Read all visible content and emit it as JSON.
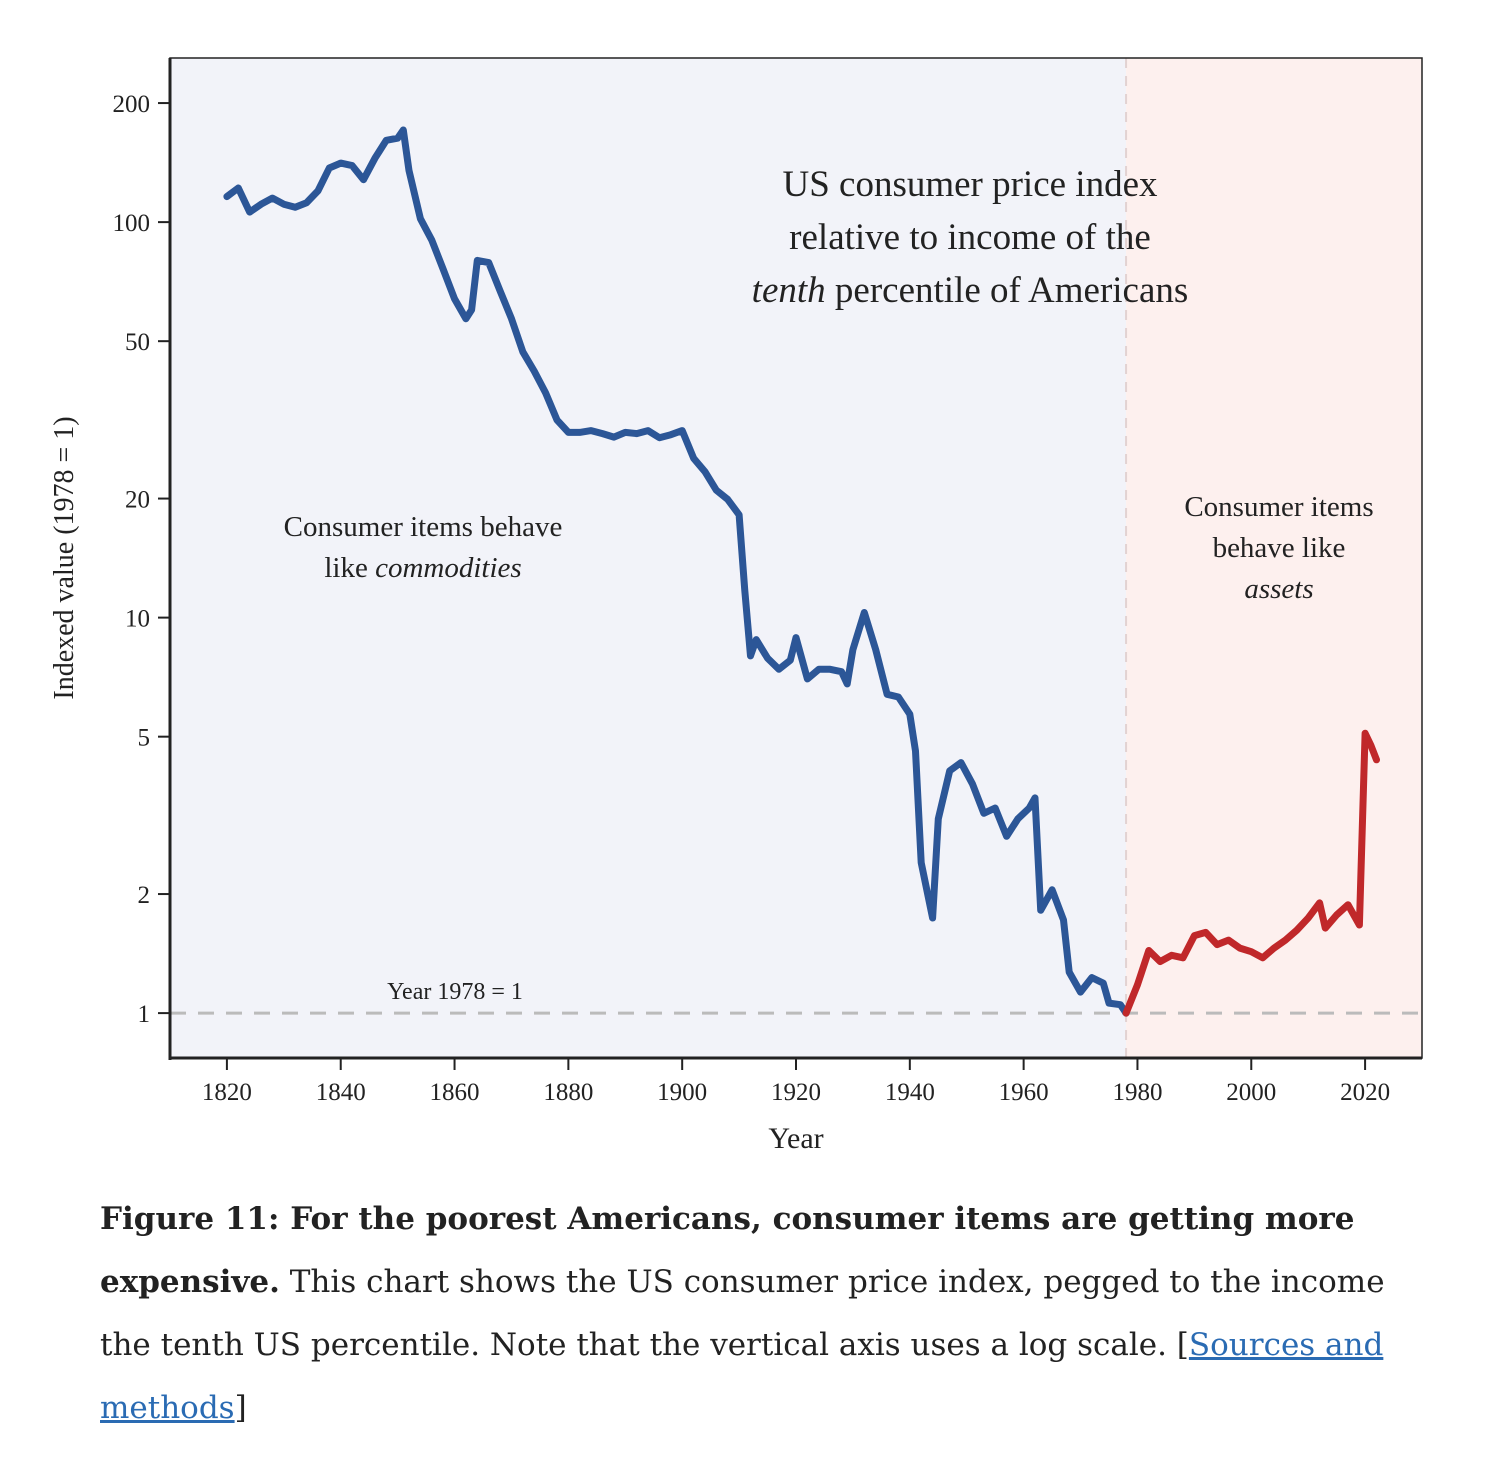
{
  "chart_data": {
    "type": "line",
    "annotation_title": {
      "lines": [
        "US consumer price index",
        "relative to income of the"
      ],
      "italic": "tenth",
      "rest": " percentile of Americans"
    },
    "annotation_left": {
      "lines": [
        "Consumer  items  behave"
      ],
      "plain": "like ",
      "italic": "commodities"
    },
    "annotation_right": {
      "lines": [
        "Consumer  items",
        "behave  like"
      ],
      "italic": "assets"
    },
    "reference_label": "Year 1978 = 1",
    "reference_y": 1,
    "divider_x": 1978,
    "xlabel": "Year",
    "ylabel": "Indexed value (1978 = 1)",
    "log_y": true,
    "xlim": [
      1810,
      2030
    ],
    "ylim": [
      0.77,
      260
    ],
    "xticks": [
      1820,
      1840,
      1860,
      1880,
      1900,
      1920,
      1940,
      1960,
      1980,
      2000,
      2020
    ],
    "yticks": [
      1,
      2,
      5,
      10,
      20,
      50,
      100,
      200
    ],
    "series": [
      {
        "name": "commodities",
        "color": "#2c5697",
        "x": [
          1820,
          1822,
          1824,
          1826,
          1828,
          1830,
          1832,
          1834,
          1836,
          1838,
          1840,
          1842,
          1844,
          1846,
          1848,
          1850,
          1851,
          1852,
          1854,
          1856,
          1858,
          1860,
          1862,
          1863,
          1864,
          1866,
          1868,
          1870,
          1872,
          1874,
          1876,
          1878,
          1880,
          1882,
          1884,
          1886,
          1888,
          1890,
          1892,
          1894,
          1896,
          1898,
          1900,
          1902,
          1904,
          1906,
          1908,
          1910,
          1911,
          1912,
          1913,
          1915,
          1917,
          1919,
          1920,
          1922,
          1924,
          1926,
          1928,
          1929,
          1930,
          1932,
          1934,
          1936,
          1938,
          1940,
          1941,
          1942,
          1944,
          1945,
          1947,
          1949,
          1951,
          1953,
          1955,
          1957,
          1959,
          1961,
          1962,
          1963,
          1965,
          1967,
          1968,
          1970,
          1972,
          1974,
          1975,
          1977,
          1978
        ],
        "values": [
          116,
          122,
          106,
          111,
          115,
          111,
          109,
          112,
          120,
          137,
          141,
          139,
          128,
          145,
          161,
          163,
          171,
          135,
          102,
          90,
          76,
          64,
          57,
          60,
          80,
          79,
          67,
          57,
          47,
          42,
          37,
          31.6,
          29.4,
          29.4,
          29.7,
          29.2,
          28.6,
          29.4,
          29.2,
          29.7,
          28.5,
          29,
          29.7,
          25.3,
          23.4,
          21,
          19.9,
          18.2,
          11.7,
          8,
          8.8,
          7.9,
          7.4,
          7.8,
          8.9,
          7,
          7.4,
          7.4,
          7.3,
          6.8,
          8.3,
          10.3,
          8.3,
          6.4,
          6.3,
          5.7,
          4.6,
          2.4,
          1.74,
          3.1,
          4.1,
          4.3,
          3.8,
          3.2,
          3.3,
          2.8,
          3.1,
          3.3,
          3.5,
          1.82,
          2.05,
          1.72,
          1.27,
          1.13,
          1.23,
          1.19,
          1.06,
          1.05,
          1
        ]
      },
      {
        "name": "assets",
        "color": "#c0282a",
        "x": [
          1978,
          1980,
          1982,
          1984,
          1986,
          1988,
          1990,
          1992,
          1994,
          1996,
          1998,
          2000,
          2002,
          2004,
          2006,
          2008,
          2010,
          2012,
          2013,
          2015,
          2017,
          2019,
          2020,
          2021,
          2022
        ],
        "values": [
          1,
          1.18,
          1.44,
          1.35,
          1.4,
          1.38,
          1.57,
          1.6,
          1.49,
          1.53,
          1.46,
          1.43,
          1.38,
          1.46,
          1.53,
          1.62,
          1.74,
          1.9,
          1.64,
          1.77,
          1.88,
          1.67,
          5.1,
          4.76,
          4.37
        ]
      }
    ],
    "region_colors": [
      "#f2f3f9",
      "#fdf0ee"
    ]
  },
  "caption": {
    "bold": "Figure 11: For the poorest Americans, consumer items are getting more expensive.",
    "text": " This chart shows the US consumer price index, pegged to the income the tenth US percentile. Note that the vertical axis uses a log scale. [",
    "link": "Sources and methods",
    "close": "]"
  }
}
